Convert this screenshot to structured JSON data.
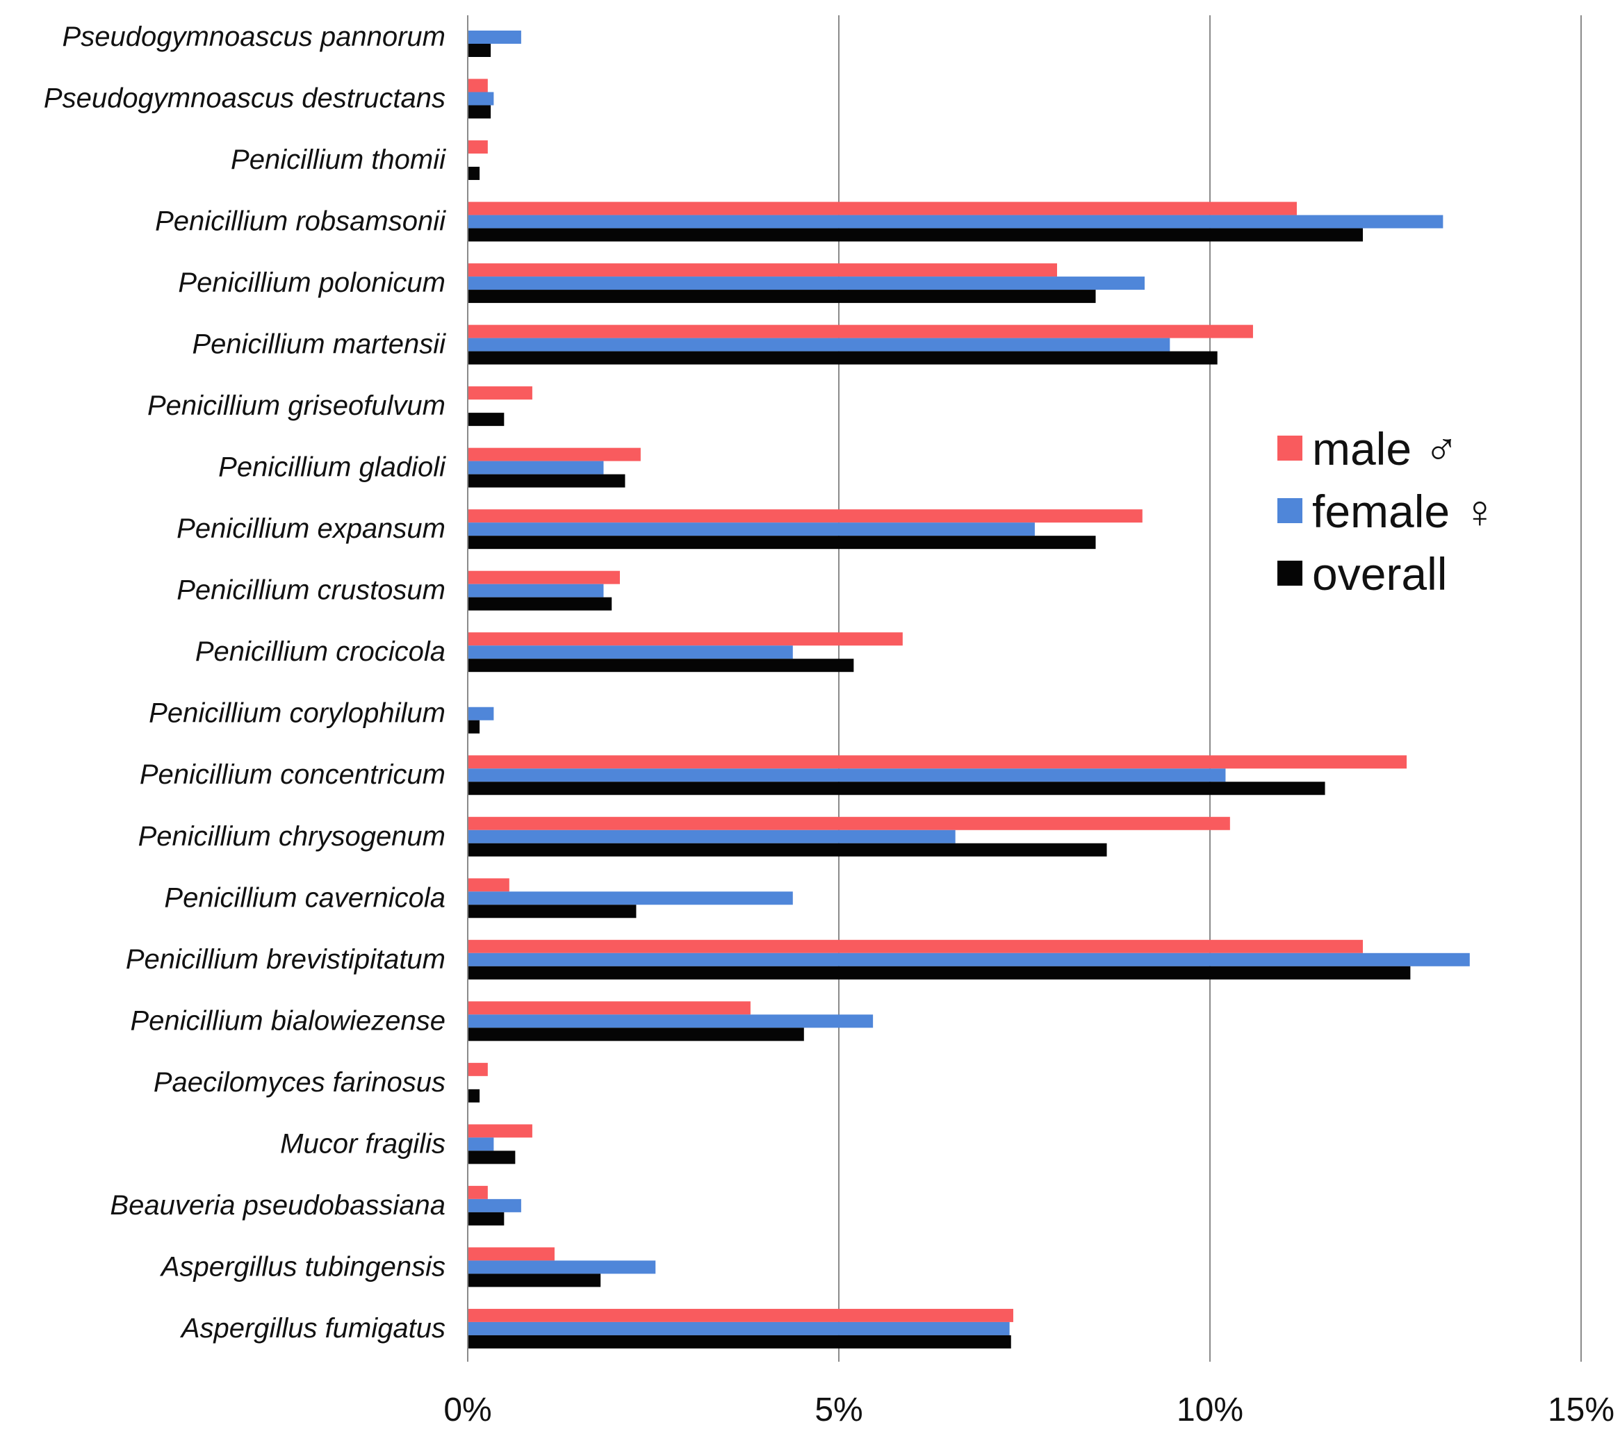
{
  "chart_data": {
    "type": "bar",
    "orientation": "horizontal",
    "categories": [
      "Pseudogymnoascus pannorum",
      "Pseudogymnoascus destructans",
      "Penicillium thomii",
      "Penicillium robsamsonii",
      "Penicillium polonicum",
      "Penicillium martensii",
      "Penicillium griseofulvum",
      "Penicillium gladioli",
      "Penicillium expansum",
      "Penicillium crustosum",
      "Penicillium crocicola",
      "Penicillium corylophilum",
      "Penicillium concentricum",
      "Penicillium chrysogenum",
      "Penicillium cavernicola",
      "Penicillium brevistipitatum",
      "Penicillium bialowiezense",
      "Paecilomyces farinosus",
      "Mucor fragilis",
      "Beauveria pseudobassiana",
      "Aspergillus tubingensis",
      "Aspergillus fumigatus"
    ],
    "series": [
      {
        "name": "male ♂",
        "color": "#f95b5e",
        "values": [
          0,
          0.27,
          0.27,
          11.17,
          7.94,
          10.58,
          0.87,
          2.33,
          9.09,
          2.05,
          5.86,
          0,
          12.65,
          10.27,
          0.56,
          12.06,
          3.81,
          0.27,
          0.87,
          0.27,
          1.17,
          7.35
        ]
      },
      {
        "name": "female ♀",
        "color": "#4f86d9",
        "values": [
          0.72,
          0.35,
          0,
          13.14,
          9.12,
          9.46,
          0,
          1.83,
          7.64,
          1.83,
          4.38,
          0.35,
          10.21,
          6.57,
          4.38,
          13.5,
          5.46,
          0,
          0.35,
          0.72,
          2.53,
          7.3
        ]
      },
      {
        "name": "overall",
        "color": "#050505",
        "values": [
          0.31,
          0.31,
          0.16,
          12.06,
          8.46,
          10.1,
          0.49,
          2.12,
          8.46,
          1.94,
          5.2,
          0.16,
          11.55,
          8.61,
          2.27,
          12.7,
          4.53,
          0.16,
          0.64,
          0.49,
          1.79,
          7.32
        ]
      }
    ],
    "xlim": [
      0,
      15
    ],
    "xticks": [
      0,
      5,
      10,
      15
    ],
    "xtick_labels": [
      "0%",
      "5%",
      "10%",
      "15%"
    ],
    "grid": "vertical",
    "legend_position": "right"
  }
}
